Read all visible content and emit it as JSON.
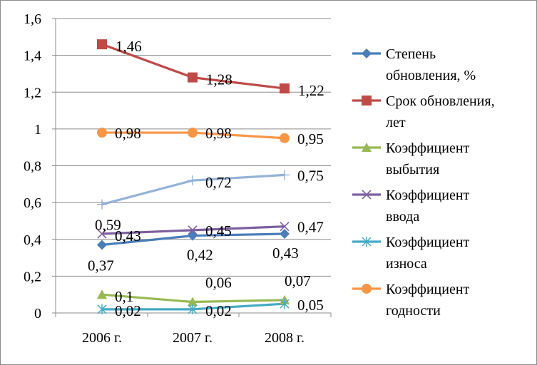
{
  "chart_data": {
    "type": "line",
    "categories": [
      "2006 г.",
      "2007 г.",
      "2008 г."
    ],
    "ylim": [
      0,
      1.6
    ],
    "yticks": [
      "0",
      "0,2",
      "0,4",
      "0,6",
      "0,8",
      "1",
      "1,2",
      "1,4",
      "1,6"
    ],
    "grid": true,
    "legend_position": "right",
    "series": [
      {
        "name": "Степень обновления, %",
        "legend_lines": [
          "Степень",
          "обновления, %"
        ],
        "color": "#4a7ebb",
        "marker": "diamond",
        "values": [
          0.37,
          0.42,
          0.43
        ],
        "labels": [
          "0,37",
          "0,42",
          "0,43"
        ]
      },
      {
        "name": "Срок обновления, лет",
        "legend_lines": [
          "Срок обновления,",
          "лет"
        ],
        "color": "#be4b48",
        "marker": "square",
        "values": [
          1.46,
          1.28,
          1.22
        ],
        "labels": [
          "1,46",
          "1,28",
          "1,22"
        ]
      },
      {
        "name": "Коэффициент выбытия",
        "legend_lines": [
          "Коэффициент",
          "выбытия"
        ],
        "color": "#98b954",
        "marker": "triangle",
        "values": [
          0.1,
          0.06,
          0.07
        ],
        "labels": [
          "0,1",
          "0,06",
          "0,07"
        ]
      },
      {
        "name": "Коэффициент ввода",
        "legend_lines": [
          "Коэффициент",
          "ввода"
        ],
        "color": "#7d60a0",
        "marker": "x",
        "values": [
          0.43,
          0.45,
          0.47
        ],
        "labels": [
          "0,43",
          "0,45",
          "0,47"
        ]
      },
      {
        "name": "Коэффициент износа",
        "legend_lines": [
          "Коэффициент",
          "износа"
        ],
        "color": "#46aac5",
        "marker": "star",
        "values": [
          0.02,
          0.02,
          0.05
        ],
        "labels": [
          "0,02",
          "0,02",
          "0,05"
        ]
      },
      {
        "name": "Коэффициент годности",
        "legend_lines": [
          "Коэффициент",
          "годности"
        ],
        "color": "#f79646",
        "marker": "circle",
        "values": [
          0.98,
          0.98,
          0.95
        ],
        "labels": [
          "0,98",
          "0,98",
          "0,95"
        ]
      },
      {
        "name": "",
        "legend_lines": [],
        "color": "#95b3d7",
        "marker": "plus",
        "values": [
          0.59,
          0.72,
          0.75
        ],
        "labels": [
          "0,59",
          "0,72",
          "0,75"
        ]
      }
    ]
  }
}
